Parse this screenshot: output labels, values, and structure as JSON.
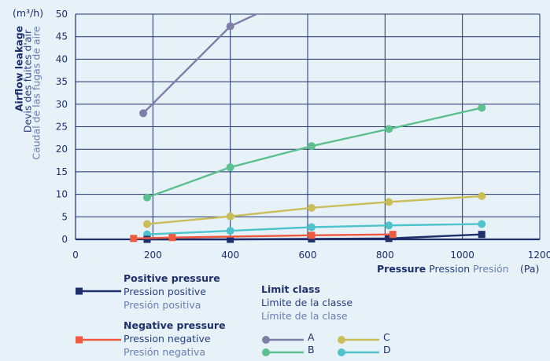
{
  "chart_data": {
    "type": "line",
    "y_unit": "(m³/h)",
    "x_unit": "(Pa)",
    "ylim": [
      0,
      50
    ],
    "xlim": [
      0,
      1200
    ],
    "yticks": [
      0,
      5,
      10,
      15,
      20,
      25,
      30,
      35,
      40,
      45,
      50
    ],
    "xticks": [
      0,
      200,
      400,
      600,
      800,
      1000,
      1200
    ],
    "grid": true,
    "ylabel": [
      "Airflow leakage",
      "Devis des fuites d'air",
      "Caudal de las fugas de aire"
    ],
    "xlabel": [
      "Pressure",
      "Pression",
      "Presión"
    ],
    "limit_classes": [
      {
        "name": "A",
        "color": "#7f7ea8",
        "x": [
          175,
          400,
          480
        ],
        "y": [
          28,
          47.3,
          50.5
        ]
      },
      {
        "name": "B",
        "color": "#5bbf8e",
        "x": [
          185,
          400,
          610,
          810,
          1050
        ],
        "y": [
          9.3,
          16,
          20.7,
          24.5,
          29.2
        ]
      },
      {
        "name": "C",
        "color": "#c9be5a",
        "x": [
          185,
          400,
          610,
          810,
          1050
        ],
        "y": [
          3.4,
          5.1,
          7,
          8.3,
          9.6
        ]
      },
      {
        "name": "D",
        "color": "#4fc3cc",
        "x": [
          185,
          400,
          610,
          810,
          1050
        ],
        "y": [
          1.1,
          1.9,
          2.7,
          3.1,
          3.4
        ]
      }
    ],
    "series": [
      {
        "name": "Positive pressure",
        "color": "#1e2f6b",
        "marker": "square",
        "x": [
          185,
          400,
          610,
          810,
          1050
        ],
        "y": [
          0,
          0,
          0.1,
          0.2,
          1.1
        ]
      },
      {
        "name": "Negative pressure",
        "color": "#ee5a3f",
        "marker": "square",
        "x": [
          150,
          250,
          610,
          820
        ],
        "y": [
          0.2,
          0.4,
          0.9,
          1.1
        ]
      }
    ]
  },
  "legend": {
    "positive": {
      "l1": "Positive pressure",
      "l2": "Pression positive",
      "l3": "Presión positiva"
    },
    "negative": {
      "l1": "Negative pressure",
      "l2": "Pression negative",
      "l3": "Presión negativa"
    },
    "limit": {
      "l1": "Limit class",
      "l2": "Limite de la classe",
      "l3": "Límite de la clase"
    }
  }
}
